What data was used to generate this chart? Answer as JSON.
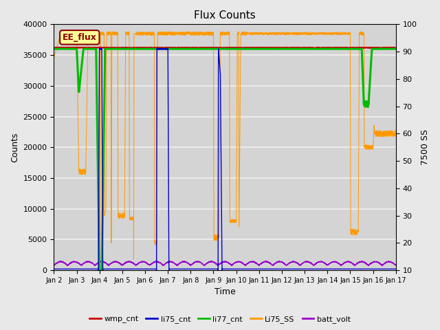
{
  "title": "Flux Counts",
  "ylabel_left": "Counts",
  "ylabel_right": "7500 SS",
  "xlabel": "Time",
  "ylim_left": [
    0,
    40000
  ],
  "ylim_right": [
    10,
    100
  ],
  "fig_bg": "#e8e8e8",
  "plot_bg": "#d4d4d4",
  "grid_color": "#f0f0f0",
  "annotation_text": "EE_flux",
  "annotation_bg": "#ffff99",
  "annotation_border": "#8B0000",
  "legend_entries": [
    "wmp_cnt",
    "li75_cnt",
    "li77_cnt",
    "Li75_SS",
    "batt_volt"
  ],
  "legend_colors": [
    "#cc0000",
    "#0000cc",
    "#00bb00",
    "#ff9900",
    "#9900cc"
  ],
  "line_colors": {
    "wmp_cnt": "#cc0000",
    "li75_cnt": "#0000cc",
    "li77_cnt": "#00bb00",
    "Li75_SS": "#ff9900",
    "batt_volt": "#9900cc"
  },
  "tick_labels": [
    "Jan 2",
    "Jan 3",
    "Jan 4",
    "Jan 5",
    "Jan 6",
    "Jan 7",
    "Jan 8",
    "Jan 9",
    "Jan 10",
    "Jan 11",
    "Jan 12",
    "Jan 13",
    "Jan 14",
    "Jan 15",
    "Jan 16",
    "Jan 17"
  ]
}
